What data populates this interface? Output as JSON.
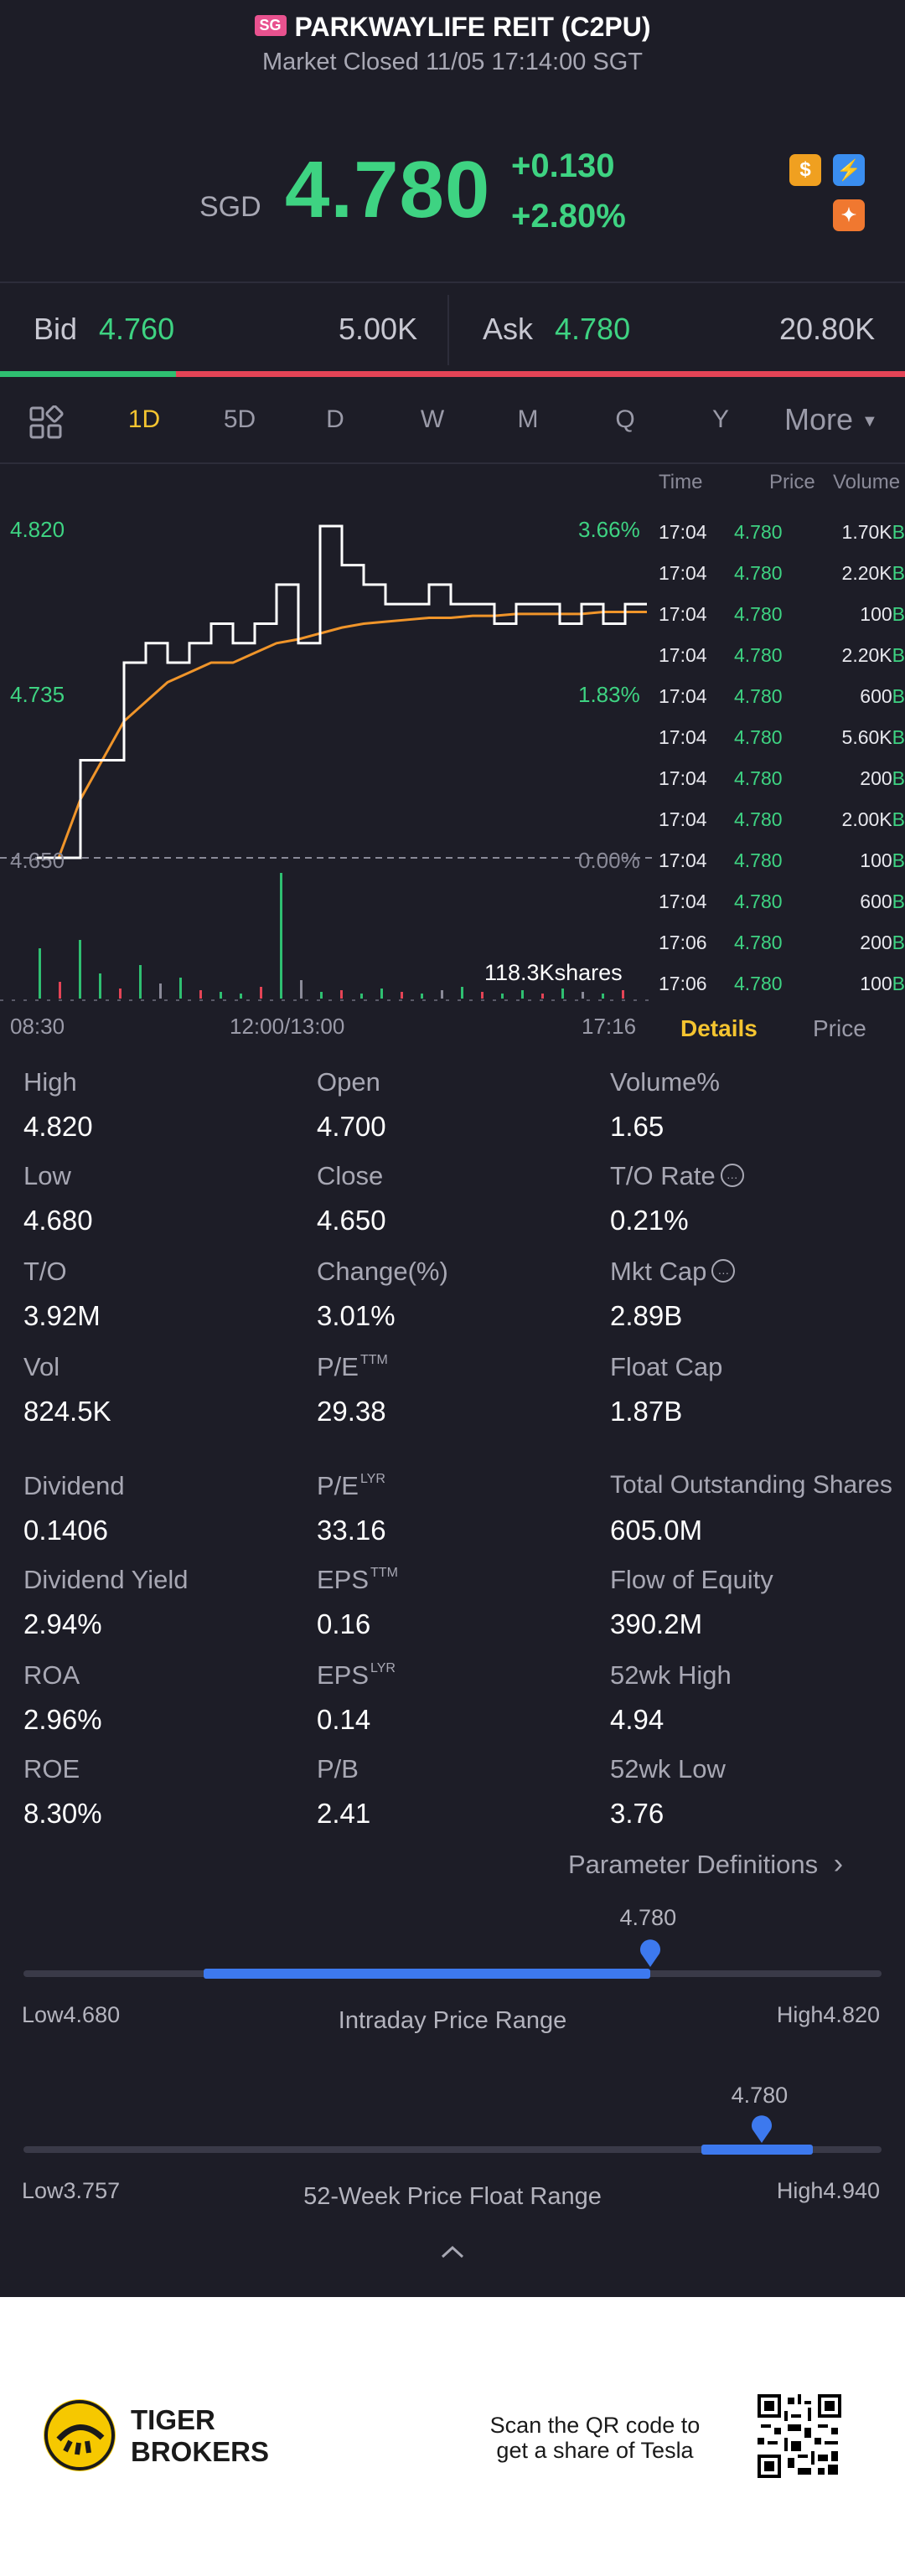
{
  "header": {
    "market_badge": "SG",
    "title": "PARKWAYLIFE REIT (C2PU)",
    "status": "Market Closed 11/05 17:14:00 SGT"
  },
  "quote": {
    "currency": "SGD",
    "price": "4.780",
    "change": "+0.130",
    "change_pct": "+2.80%",
    "color_up": "#3ed382",
    "badges": [
      {
        "icon": "dollar-badge-icon",
        "color": "#f0a020"
      },
      {
        "icon": "lightning-badge-icon",
        "color": "#3a8ef0"
      },
      {
        "icon": "option-badge-icon",
        "color": "#f07830"
      }
    ]
  },
  "bidask": {
    "bid_label": "Bid",
    "bid_price": "4.760",
    "bid_qty": "5.00K",
    "ask_label": "Ask",
    "ask_price": "4.780",
    "ask_qty": "20.80K"
  },
  "tabs": {
    "items": [
      "1D",
      "5D",
      "D",
      "W",
      "M",
      "Q",
      "Y"
    ],
    "active": "1D",
    "more": "More"
  },
  "chart": {
    "left_top": "4.820",
    "left_mid": "4.735",
    "left_bottom": "4.650",
    "right_top": "3.66%",
    "right_mid": "1.83%",
    "right_bottom": "0.00%",
    "volume_label": "118.3Kshares",
    "time_start": "08:30",
    "time_mid": "12:00/13:00",
    "time_end": "17:16"
  },
  "chart_data": {
    "type": "line",
    "title": "",
    "xlabel": "",
    "ylabel": "",
    "ylim": [
      4.65,
      4.82
    ],
    "x_ticks": [
      "08:30",
      "12:00/13:00",
      "17:16"
    ],
    "series": [
      {
        "values": [
          4.65,
          4.65,
          4.7,
          4.7,
          4.75,
          4.76,
          4.75,
          4.76,
          4.77,
          4.76,
          4.77,
          4.79,
          4.76,
          4.82,
          4.8,
          4.79,
          4.78,
          4.78,
          4.79,
          4.78,
          4.78,
          4.77,
          4.78,
          4.78,
          4.77,
          4.78,
          4.77,
          4.78,
          4.78
        ]
      },
      {
        "values": [
          4.65,
          4.65,
          4.68,
          4.7,
          4.72,
          4.73,
          4.74,
          4.745,
          4.75,
          4.75,
          4.755,
          4.76,
          4.762,
          4.765,
          4.768,
          4.77,
          4.771,
          4.772,
          4.773,
          4.773,
          4.774,
          4.774,
          4.775,
          4.775,
          4.775,
          4.775,
          4.776,
          4.776,
          4.776
        ]
      }
    ],
    "volume_total": "118.3Kshares"
  },
  "trades": {
    "headers": [
      "Time",
      "Price",
      "Volume"
    ],
    "rows": [
      {
        "time": "17:04",
        "price": "4.780",
        "vol": "1.70K",
        "side": "B"
      },
      {
        "time": "17:04",
        "price": "4.780",
        "vol": "2.20K",
        "side": "B"
      },
      {
        "time": "17:04",
        "price": "4.780",
        "vol": "100",
        "side": "B"
      },
      {
        "time": "17:04",
        "price": "4.780",
        "vol": "2.20K",
        "side": "B"
      },
      {
        "time": "17:04",
        "price": "4.780",
        "vol": "600",
        "side": "B"
      },
      {
        "time": "17:04",
        "price": "4.780",
        "vol": "5.60K",
        "side": "B"
      },
      {
        "time": "17:04",
        "price": "4.780",
        "vol": "200",
        "side": "B"
      },
      {
        "time": "17:04",
        "price": "4.780",
        "vol": "2.00K",
        "side": "B"
      },
      {
        "time": "17:04",
        "price": "4.780",
        "vol": "100",
        "side": "B"
      },
      {
        "time": "17:04",
        "price": "4.780",
        "vol": "600",
        "side": "B"
      },
      {
        "time": "17:06",
        "price": "4.780",
        "vol": "200",
        "side": "B"
      },
      {
        "time": "17:06",
        "price": "4.780",
        "vol": "100",
        "side": "B"
      }
    ],
    "details_tab": "Details",
    "price_tab": "Price"
  },
  "stats": {
    "high_l": "High",
    "high_v": "4.820",
    "open_l": "Open",
    "open_v": "4.700",
    "volpct_l": "Volume%",
    "volpct_v": "1.65",
    "low_l": "Low",
    "low_v": "4.680",
    "close_l": "Close",
    "close_v": "4.650",
    "torate_l": "T/O Rate",
    "torate_v": "0.21%",
    "to_l": "T/O",
    "to_v": "3.92M",
    "chgpct_l": "Change(%)",
    "chgpct_v": "3.01%",
    "mktcap_l": "Mkt Cap",
    "mktcap_v": "2.89B",
    "vol_l": "Vol",
    "vol_v": "824.5K",
    "pe_ttm_l": "P/E",
    "pe_ttm_sup": "TTM",
    "pe_ttm_v": "29.38",
    "floatcap_l": "Float Cap",
    "floatcap_v": "1.87B",
    "div_l": "Dividend",
    "div_v": "0.1406",
    "pe_lyr_l": "P/E",
    "pe_lyr_sup": "LYR",
    "pe_lyr_v": "33.16",
    "tos_l": "Total Outstanding Shares",
    "tos_v": "605.0M",
    "divy_l": "Dividend Yield",
    "divy_v": "2.94%",
    "eps_ttm_l": "EPS",
    "eps_ttm_sup": "TTM",
    "eps_ttm_v": "0.16",
    "foe_l": "Flow of Equity",
    "foe_v": "390.2M",
    "roa_l": "ROA",
    "roa_v": "2.96%",
    "eps_lyr_l": "EPS",
    "eps_lyr_sup": "LYR",
    "eps_lyr_v": "0.14",
    "hi52_l": "52wk High",
    "hi52_v": "4.94",
    "roe_l": "ROE",
    "roe_v": "8.30%",
    "pb_l": "P/B",
    "pb_v": "2.41",
    "lo52_l": "52wk Low",
    "lo52_v": "3.76",
    "param_def": "Parameter Definitions"
  },
  "range_intraday": {
    "current": "4.780",
    "low_label": "Low4.680",
    "high_label": "High4.820",
    "title": "Intraday Price Range",
    "fill_start": 0.21,
    "fill_end": 0.73,
    "marker": 0.73
  },
  "range_52w": {
    "current": "4.780",
    "low_label": "Low3.757",
    "high_label": "High4.940",
    "title": "52-Week Price Float Range",
    "fill_start": 0.79,
    "fill_end": 0.92,
    "marker": 0.86
  },
  "footer": {
    "brand_line1": "TIGER",
    "brand_line2": "BROKERS",
    "qr_line1": "Scan the QR code to",
    "qr_line2": "get a share of Tesla"
  }
}
